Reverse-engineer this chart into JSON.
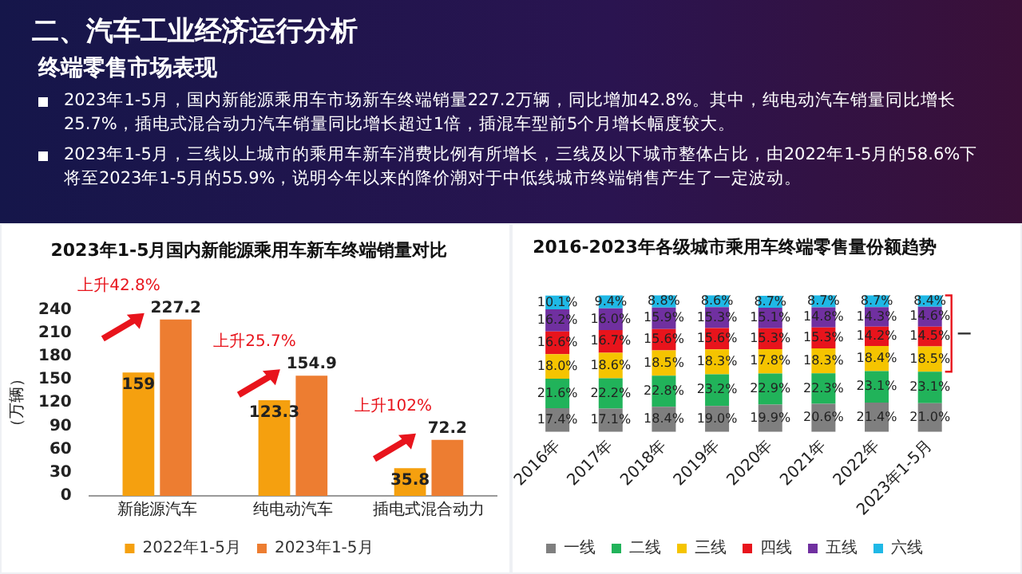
{
  "chart_data": [
    {
      "type": "other",
      "title": "二、汽车工业经济运行分析",
      "subtitle": "终端零售市场表现",
      "annotations": [
        "2023年1-5月，国内新能源乘用车市场新车终端销量227.2万辆，同比增加42.8%。其中，纯电动汽车销量同比增长25.7%，插电式混合动力汽车销量同比增长超过1倍，插混车型前5个月增长幅度较大。",
        "2023年1-5月，三线以上城市的乘用车新车消费比例有所增长，三线及以下城市整体占比，由2022年1-5月的58.6%下将至2023年1-5月的55.9%，说明今年以来的降价潮对于中低线城市终端销售产生了一定波动。"
      ]
    },
    {
      "type": "bar",
      "title": "2023年1-5月国内新能源乘用车新车终端销量对比",
      "ylabel": "（万辆）",
      "categories": [
        "新能源汽车",
        "纯电动汽车",
        "插电式混合动力"
      ],
      "series": [
        {
          "name": "2022年1-5月",
          "color": "#f5a00f",
          "values": [
            159,
            123.3,
            35.8
          ]
        },
        {
          "name": "2023年1-5月",
          "color": "#ed7d31",
          "values": [
            227.2,
            154.9,
            72.2
          ]
        }
      ],
      "ylim": [
        0,
        240
      ],
      "yticks": [
        0,
        30,
        60,
        90,
        120,
        150,
        180,
        210,
        240
      ],
      "grid": false,
      "legend": "bottom",
      "data_labels": true,
      "annotations": [
        {
          "text": "上升42.8%",
          "x": "新能源汽车",
          "y": 227.2
        },
        {
          "text": "上升25.7%",
          "x": "纯电动汽车",
          "y": 154.9
        },
        {
          "text": "上升102%",
          "x": "插电式混合动力",
          "y": 72.2
        }
      ]
    },
    {
      "type": "bar",
      "stacked": true,
      "title": "2016-2023年各级城市乘用车终端零售量份额趋势",
      "categories": [
        "2016年",
        "2017年",
        "2018年",
        "2019年",
        "2020年",
        "2021年",
        "2022年",
        "2023年1-5月"
      ],
      "series": [
        {
          "name": "一线",
          "color": "#7f7f7f",
          "values": [
            17.4,
            17.1,
            18.4,
            19.0,
            19.9,
            20.6,
            21.4,
            21.0
          ],
          "value_labels": [
            "17.4%",
            "17.1%",
            "18.4%",
            "19.0%",
            "19.9%",
            "20.6%",
            "21.4%",
            "21.0%"
          ]
        },
        {
          "name": "二线",
          "color": "#21b35a",
          "values": [
            21.6,
            22.2,
            22.8,
            23.2,
            22.9,
            22.3,
            23.1,
            23.1
          ],
          "value_labels": [
            "21.6%",
            "22.2%",
            "22.8%",
            "23.2%",
            "22.9%",
            "22.3%",
            "23.1%",
            "23.1%"
          ]
        },
        {
          "name": "三线",
          "color": "#f5c400",
          "values": [
            18.0,
            18.6,
            18.5,
            18.3,
            17.8,
            18.3,
            18.4,
            18.5
          ],
          "value_labels": [
            "18.0%",
            "18.6%",
            "18.5%",
            "18.3%",
            "17.8%",
            "18.3%",
            "18.4%",
            "18.5%"
          ]
        },
        {
          "name": "四线",
          "color": "#e8141c",
          "values": [
            16.6,
            16.7,
            15.6,
            15.6,
            15.3,
            15.3,
            14.2,
            14.5
          ],
          "value_labels": [
            "16.6%",
            "16.7%",
            "15.6%",
            "15.6%",
            "15.3%",
            "15.3%",
            "14.2%",
            "14.5%"
          ]
        },
        {
          "name": "五线",
          "color": "#7030a0",
          "values": [
            16.2,
            16.0,
            15.9,
            15.3,
            15.1,
            14.8,
            14.3,
            14.6
          ],
          "value_labels": [
            "16.2%",
            "16.0%",
            "15.9%",
            "15.3%",
            "15.1%",
            "14.8%",
            "14.3%",
            "14.6%"
          ]
        },
        {
          "name": "六线",
          "color": "#1fb8e6",
          "values": [
            10.1,
            9.4,
            8.8,
            8.6,
            8.7,
            8.7,
            8.7,
            8.4
          ],
          "value_labels": [
            "10.1%",
            "9.4%",
            "8.8%",
            "8.6%",
            "8.7%",
            "8.7%",
            "8.7%",
            "8.4%"
          ]
        }
      ],
      "tick_labels": "x",
      "grid": false,
      "legend": "bottom"
    }
  ]
}
